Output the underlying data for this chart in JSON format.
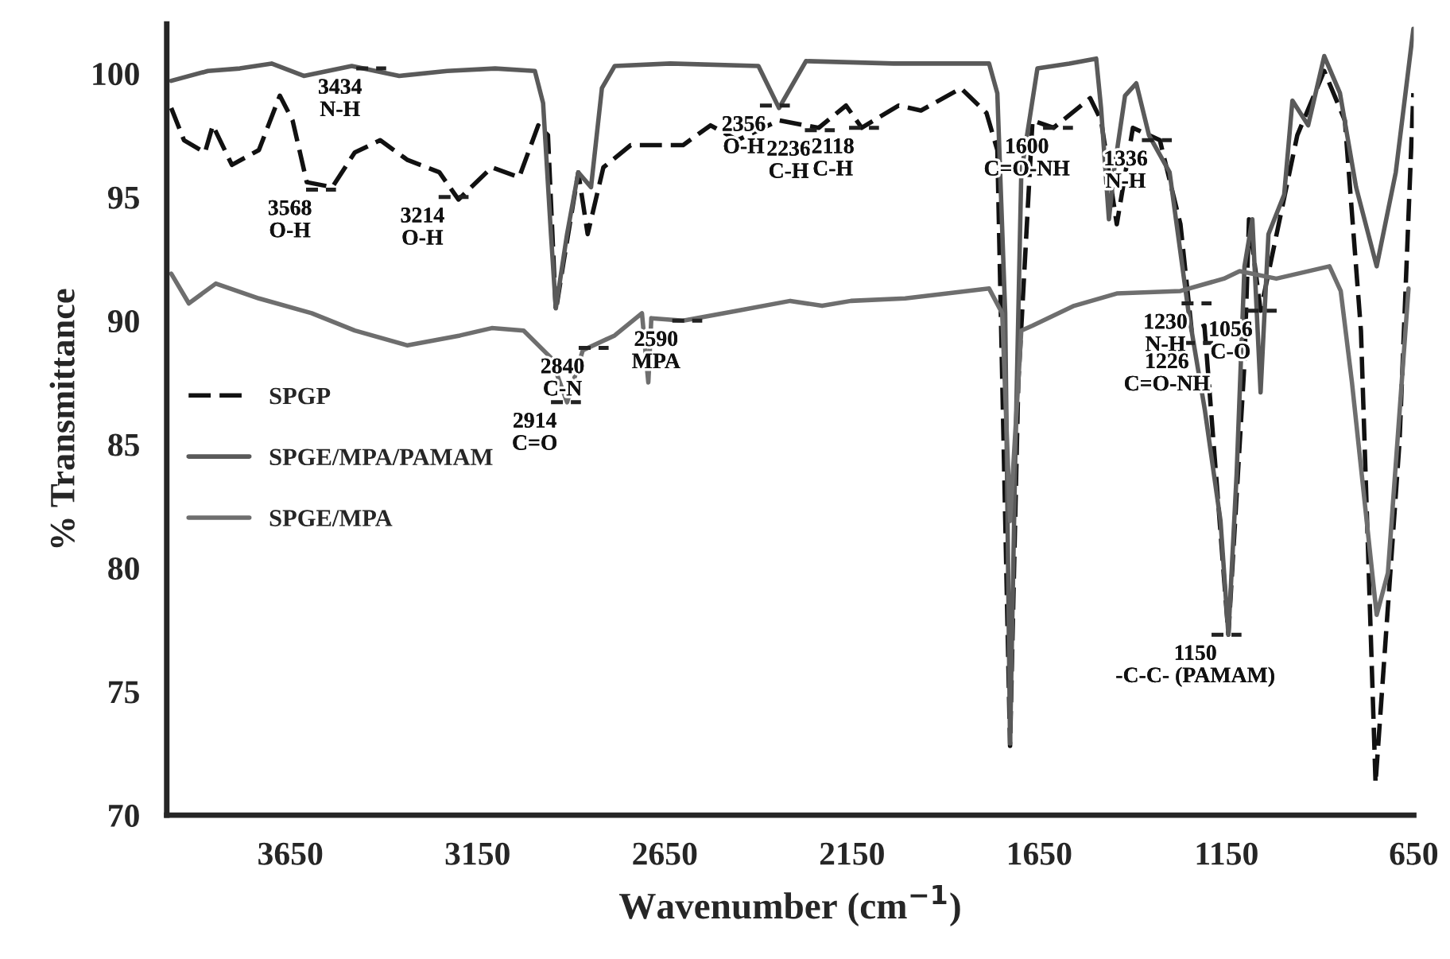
{
  "chart_data": {
    "type": "line",
    "xlabel": "Wavenumber (cm$^{−1}$)",
    "ylabel": "% Transmittance",
    "xlim": [
      3980,
      650
    ],
    "ylim": [
      70,
      102
    ],
    "xticks": [
      3650,
      3150,
      2650,
      2150,
      1650,
      1150,
      650
    ],
    "yticks": [
      70,
      75,
      80,
      85,
      90,
      95,
      100
    ],
    "grid": false,
    "legend": "left",
    "marker": "none",
    "series": [
      {
        "name": "SPGP",
        "color": "#111111",
        "line_style": "dashed",
        "x": [
          3968,
          3934,
          3878,
          3857,
          3806,
          3734,
          3678,
          3644,
          3606,
          3538,
          3478,
          3410,
          3337,
          3252,
          3201,
          3112,
          3039,
          2988,
          2962,
          2941,
          2920,
          2881,
          2856,
          2814,
          2741,
          2601,
          2528,
          2456,
          2345,
          2239,
          2166,
          2124,
          2026,
          1966,
          1859,
          1791,
          1762,
          1728,
          1706,
          1668,
          1612,
          1514,
          1485,
          1443,
          1400,
          1328,
          1273,
          1243,
          1209,
          1175,
          1145,
          1102,
          1090,
          1059,
          961,
          889,
          834,
          791,
          752,
          688,
          651
        ],
        "values": [
          98.6,
          97.3,
          96.8,
          97.9,
          96.3,
          96.9,
          99.1,
          98.1,
          95.6,
          95.4,
          96.8,
          97.3,
          96.5,
          96.0,
          94.9,
          96.2,
          95.8,
          97.9,
          97.5,
          90.4,
          92.4,
          96.0,
          93.5,
          96.2,
          97.1,
          97.1,
          97.9,
          97.3,
          98.1,
          97.8,
          98.7,
          97.8,
          98.7,
          98.5,
          99.4,
          98.4,
          96.9,
          72.8,
          87.5,
          98.1,
          97.8,
          99.0,
          98.1,
          93.9,
          97.8,
          97.3,
          93.9,
          89.6,
          89.8,
          83.2,
          77.3,
          88.3,
          94.1,
          90.4,
          97.5,
          100.1,
          98.1,
          89.6,
          71.3,
          85.1,
          99.2
        ]
      },
      {
        "name": "SPGE/MPA/PAMAM",
        "color": "#5a5a5a",
        "line_style": "solid",
        "x": [
          3968,
          3870,
          3785,
          3700,
          3614,
          3486,
          3359,
          3231,
          3103,
          2997,
          2975,
          2954,
          2941,
          2911,
          2881,
          2847,
          2818,
          2784,
          2635,
          2400,
          2345,
          2273,
          2039,
          1784,
          1762,
          1741,
          1728,
          1715,
          1698,
          1655,
          1570,
          1498,
          1485,
          1464,
          1451,
          1421,
          1391,
          1357,
          1302,
          1251,
          1208,
          1166,
          1145,
          1123,
          1102,
          1081,
          1059,
          1038,
          996,
          974,
          932,
          889,
          847,
          804,
          749,
          698,
          651
        ],
        "values": [
          99.7,
          100.1,
          100.2,
          100.4,
          99.9,
          100.3,
          99.9,
          100.1,
          100.2,
          100.1,
          98.8,
          93.5,
          90.5,
          93.5,
          96.0,
          95.4,
          99.4,
          100.3,
          100.4,
          100.3,
          98.6,
          100.5,
          100.4,
          100.4,
          99.2,
          90.3,
          72.9,
          83.8,
          96.0,
          100.2,
          100.4,
          100.6,
          98.6,
          94.1,
          96.0,
          99.1,
          99.6,
          97.5,
          96.0,
          90.3,
          86.4,
          81.9,
          77.3,
          83.8,
          92.2,
          94.1,
          87.1,
          93.5,
          95.1,
          98.9,
          97.9,
          100.7,
          99.2,
          95.4,
          92.2,
          96.0,
          101.8
        ]
      },
      {
        "name": "SPGE/MPA",
        "color": "#6e6e6e",
        "line_style": "solid",
        "x": [
          3968,
          3921,
          3849,
          3734,
          3593,
          3478,
          3337,
          3197,
          3112,
          3027,
          2954,
          2911,
          2869,
          2784,
          2711,
          2694,
          2686,
          2601,
          2456,
          2315,
          2230,
          2153,
          2008,
          1784,
          1749,
          1728,
          1698,
          1668,
          1557,
          1443,
          1273,
          1157,
          1115,
          1017,
          875,
          845,
          815,
          749,
          719,
          664
        ],
        "values": [
          91.9,
          90.7,
          91.5,
          90.9,
          90.3,
          89.6,
          89.0,
          89.4,
          89.7,
          89.6,
          88.5,
          86.7,
          88.8,
          89.4,
          90.3,
          87.5,
          90.1,
          90.0,
          90.4,
          90.8,
          90.6,
          90.8,
          90.9,
          91.3,
          90.3,
          81.9,
          89.6,
          89.8,
          90.6,
          91.1,
          91.2,
          91.7,
          92.0,
          91.7,
          92.2,
          91.2,
          87.5,
          78.1,
          79.8,
          91.3
        ]
      }
    ],
    "annotations": [
      {
        "text": "3568\nO-H",
        "x": 3568,
        "y": 95.3
      },
      {
        "text": "3434\nN-H",
        "x": 3434,
        "y": 100.2
      },
      {
        "text": "3214\nO-H",
        "x": 3214,
        "y": 95.0
      },
      {
        "text": "2914\nC=O",
        "x": 2914,
        "y": 86.7
      },
      {
        "text": "2840\nC-N",
        "x": 2840,
        "y": 88.9
      },
      {
        "text": "2590\nMPA",
        "x": 2590,
        "y": 90.0
      },
      {
        "text": "2356\nO-H",
        "x": 2356,
        "y": 98.7
      },
      {
        "text": "2236\nC-H",
        "x": 2236,
        "y": 97.7
      },
      {
        "text": "2118\nC-H",
        "x": 2118,
        "y": 97.8
      },
      {
        "text": "1600\nC=O-NH",
        "x": 1600,
        "y": 97.8
      },
      {
        "text": "1336\nN-H",
        "x": 1336,
        "y": 97.3
      },
      {
        "text": "1230\nN-H",
        "x": 1230,
        "y": 90.7
      },
      {
        "text": "1226\nC=O-NH",
        "x": 1226,
        "y": 89.1
      },
      {
        "text": "1056\nC-O",
        "x": 1056,
        "y": 90.4
      },
      {
        "text": "1150\n-C-C- (PAMAM)",
        "x": 1150,
        "y": 77.3
      }
    ]
  }
}
